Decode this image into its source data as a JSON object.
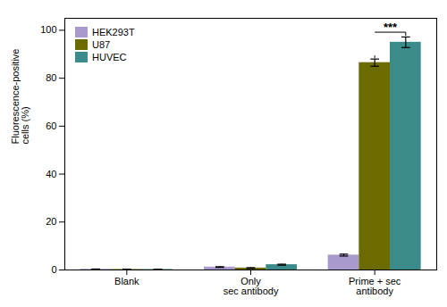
{
  "chart_data": {
    "type": "bar",
    "categories": [
      "Blank",
      "Only\nsec antibody",
      "Prime + sec\nantibody"
    ],
    "series": [
      {
        "name": "HEK293T",
        "color": "#a89acc",
        "values": [
          0.3,
          1.2,
          6.2
        ],
        "errors": [
          0.1,
          0.15,
          0.4
        ]
      },
      {
        "name": "U87",
        "color": "#6b6b00",
        "values": [
          0.2,
          0.8,
          86.5
        ],
        "errors": [
          0.1,
          0.15,
          1.5
        ]
      },
      {
        "name": "HUVEC",
        "color": "#3b8b8b",
        "values": [
          0.2,
          2.2,
          95.0
        ],
        "errors": [
          0.1,
          0.2,
          2.2
        ]
      }
    ],
    "ylabel": "Fluorescence-positive\ncells (%)",
    "ylim": [
      0,
      105
    ],
    "yticks": [
      0,
      20,
      40,
      60,
      80,
      100
    ],
    "annotations": [
      {
        "text": "***",
        "category": "Prime + sec\nantibody",
        "from": "U87",
        "to": "HUVEC"
      }
    ],
    "grid": false,
    "legend": "upper left"
  }
}
